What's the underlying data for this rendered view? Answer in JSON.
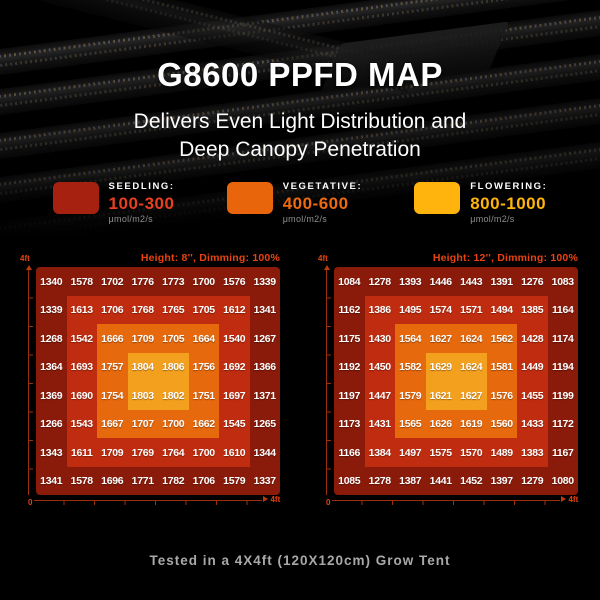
{
  "header": {
    "title": "G8600 PPFD MAP",
    "subtitle_line1": "Delivers Even Light Distribution and",
    "subtitle_line2": "Deep Canopy Penetration"
  },
  "legend": {
    "items": [
      {
        "name": "SEEDLING:",
        "range": "100-300",
        "unit": "μmol/m2/s",
        "swatch_color": "#a62110",
        "range_color": "#e8401f"
      },
      {
        "name": "VEGETATIVE:",
        "range": "400-600",
        "unit": "μmol/m2/s",
        "swatch_color": "#e8650c",
        "range_color": "#ef6a0d"
      },
      {
        "name": "FLOWERING:",
        "range": "800-1000",
        "unit": "μmol/m2/s",
        "swatch_color": "#ffb40d",
        "range_color": "#ffb40d"
      }
    ]
  },
  "maps": [
    {
      "header": "Height: 8'', Dimming: 100%",
      "y_axis_label": "4ft",
      "origin_label": "0",
      "x_axis_label": "4ft"
    },
    {
      "header": "Height: 12'', Dimming: 100%",
      "y_axis_label": "4ft",
      "origin_label": "0",
      "x_axis_label": "4ft"
    }
  ],
  "footer": {
    "caption": "Tested in a 4X4ft (120X120cm) Grow Tent"
  },
  "colors": {
    "rings": [
      "#8a1b0a",
      "#c02c0f",
      "#e6690d",
      "#f4a01f"
    ],
    "axis": "#9c2f09",
    "map_header_accent": "#e8430f"
  },
  "chart_data": [
    {
      "type": "heatmap",
      "title": "Height: 8'', Dimming: 100%",
      "unit": "μmol/m2/s",
      "x_range": [
        "0",
        "4ft"
      ],
      "y_range": [
        "0",
        "4ft"
      ],
      "legend": [
        {
          "label": "SEEDLING",
          "range": "100-300"
        },
        {
          "label": "VEGETATIVE",
          "range": "400-600"
        },
        {
          "label": "FLOWERING",
          "range": "800-1000"
        }
      ],
      "values": [
        [
          1340,
          1578,
          1702,
          1776,
          1773,
          1700,
          1576,
          1339
        ],
        [
          1339,
          1613,
          1706,
          1768,
          1765,
          1705,
          1612,
          1341
        ],
        [
          1268,
          1542,
          1666,
          1709,
          1705,
          1664,
          1540,
          1267
        ],
        [
          1364,
          1693,
          1757,
          1804,
          1806,
          1756,
          1692,
          1366
        ],
        [
          1369,
          1690,
          1754,
          1803,
          1802,
          1751,
          1697,
          1371
        ],
        [
          1266,
          1543,
          1667,
          1707,
          1700,
          1662,
          1545,
          1265
        ],
        [
          1343,
          1611,
          1709,
          1769,
          1764,
          1700,
          1610,
          1344
        ],
        [
          1341,
          1578,
          1696,
          1771,
          1782,
          1706,
          1579,
          1337
        ]
      ]
    },
    {
      "type": "heatmap",
      "title": "Height: 12'', Dimming: 100%",
      "unit": "μmol/m2/s",
      "x_range": [
        "0",
        "4ft"
      ],
      "y_range": [
        "0",
        "4ft"
      ],
      "legend": [
        {
          "label": "SEEDLING",
          "range": "100-300"
        },
        {
          "label": "VEGETATIVE",
          "range": "400-600"
        },
        {
          "label": "FLOWERING",
          "range": "800-1000"
        }
      ],
      "values": [
        [
          1084,
          1278,
          1393,
          1446,
          1443,
          1391,
          1276,
          1083
        ],
        [
          1162,
          1386,
          1495,
          1574,
          1571,
          1494,
          1385,
          1164
        ],
        [
          1175,
          1430,
          1564,
          1627,
          1624,
          1562,
          1428,
          1174
        ],
        [
          1192,
          1450,
          1582,
          1629,
          1624,
          1581,
          1449,
          1194
        ],
        [
          1197,
          1447,
          1579,
          1621,
          1627,
          1576,
          1455,
          1199
        ],
        [
          1173,
          1431,
          1565,
          1626,
          1619,
          1560,
          1433,
          1172
        ],
        [
          1166,
          1384,
          1497,
          1575,
          1570,
          1489,
          1383,
          1167
        ],
        [
          1085,
          1278,
          1387,
          1441,
          1452,
          1397,
          1279,
          1080
        ]
      ]
    }
  ]
}
